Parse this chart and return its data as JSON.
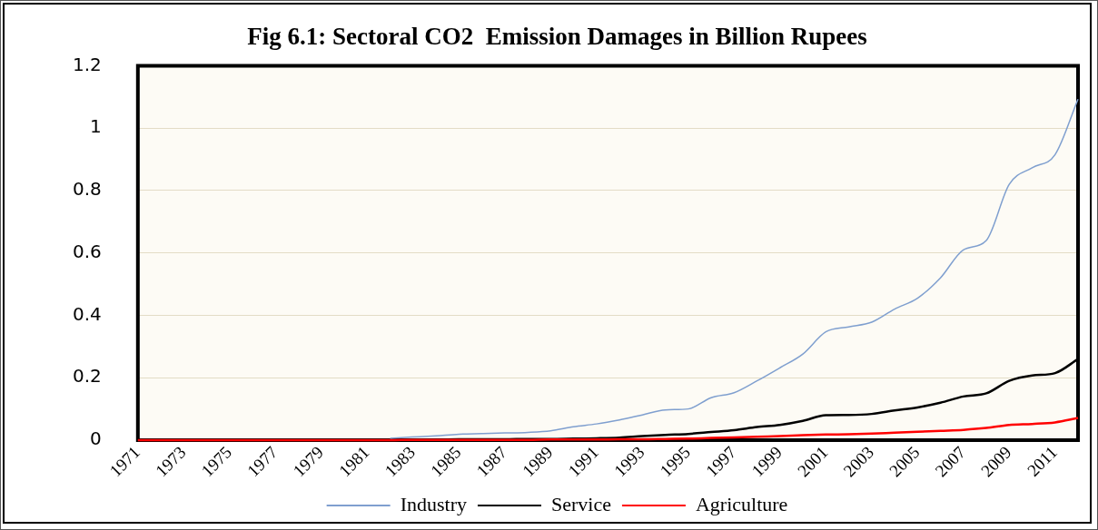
{
  "chart_data": {
    "type": "line",
    "title": "Fig 6.1: Sectoral CO2  Emission Damages in Billion Rupees",
    "categories": [
      "1971",
      null,
      "1973",
      null,
      "1975",
      null,
      "1977",
      null,
      "1979",
      null,
      "1981",
      null,
      "1983",
      null,
      "1985",
      null,
      "1987",
      null,
      "1989",
      null,
      "1991",
      null,
      "1993",
      null,
      "1995",
      null,
      "1997",
      null,
      "1999",
      null,
      "2001",
      null,
      "2003",
      null,
      "2005",
      null,
      "2007",
      null,
      "2009",
      null,
      "2011",
      null
    ],
    "series": [
      {
        "name": "Industry",
        "color": "#7f9fcf",
        "values": [
          null,
          null,
          null,
          null,
          null,
          null,
          null,
          null,
          null,
          null,
          null,
          0.006,
          0.01,
          0.014,
          0.019,
          0.021,
          0.023,
          0.025,
          0.03,
          0.043,
          0.052,
          0.065,
          0.081,
          0.097,
          0.1,
          0.136,
          0.152,
          0.19,
          0.232,
          0.276,
          0.347,
          0.363,
          0.378,
          0.42,
          0.455,
          0.52,
          0.61,
          0.64,
          0.82,
          0.873,
          0.915,
          1.093
        ]
      },
      {
        "name": "Service",
        "color": "#000000",
        "values": [
          null,
          null,
          null,
          null,
          null,
          null,
          null,
          null,
          null,
          null,
          null,
          null,
          0.002,
          0.002,
          0.003,
          0.003,
          0.003,
          0.004,
          0.004,
          0.005,
          0.006,
          0.008,
          0.013,
          0.017,
          0.02,
          0.026,
          0.032,
          0.042,
          0.049,
          0.062,
          0.08,
          0.081,
          0.084,
          0.095,
          0.105,
          0.12,
          0.14,
          0.15,
          0.19,
          0.207,
          0.215,
          0.26
        ]
      },
      {
        "name": "Agriculture",
        "color": "#ff0000",
        "values": [
          0,
          0,
          0,
          0,
          0,
          0,
          0,
          0,
          0,
          0,
          0,
          0,
          0.001,
          0.001,
          0.001,
          0.001,
          0.001,
          0.001,
          0.002,
          0.002,
          0.002,
          0.003,
          0.003,
          0.004,
          0.005,
          0.007,
          0.009,
          0.011,
          0.013,
          0.016,
          0.018,
          0.019,
          0.021,
          0.024,
          0.027,
          0.03,
          0.033,
          0.039,
          0.049,
          0.052,
          0.057,
          0.071
        ]
      }
    ],
    "ylim": [
      0,
      1.2
    ],
    "yticks": [
      0,
      0.2,
      0.4,
      0.6,
      0.8,
      1,
      1.2
    ],
    "grid": "y",
    "legend": "bottom",
    "marker": "none",
    "line_style": "solid"
  }
}
